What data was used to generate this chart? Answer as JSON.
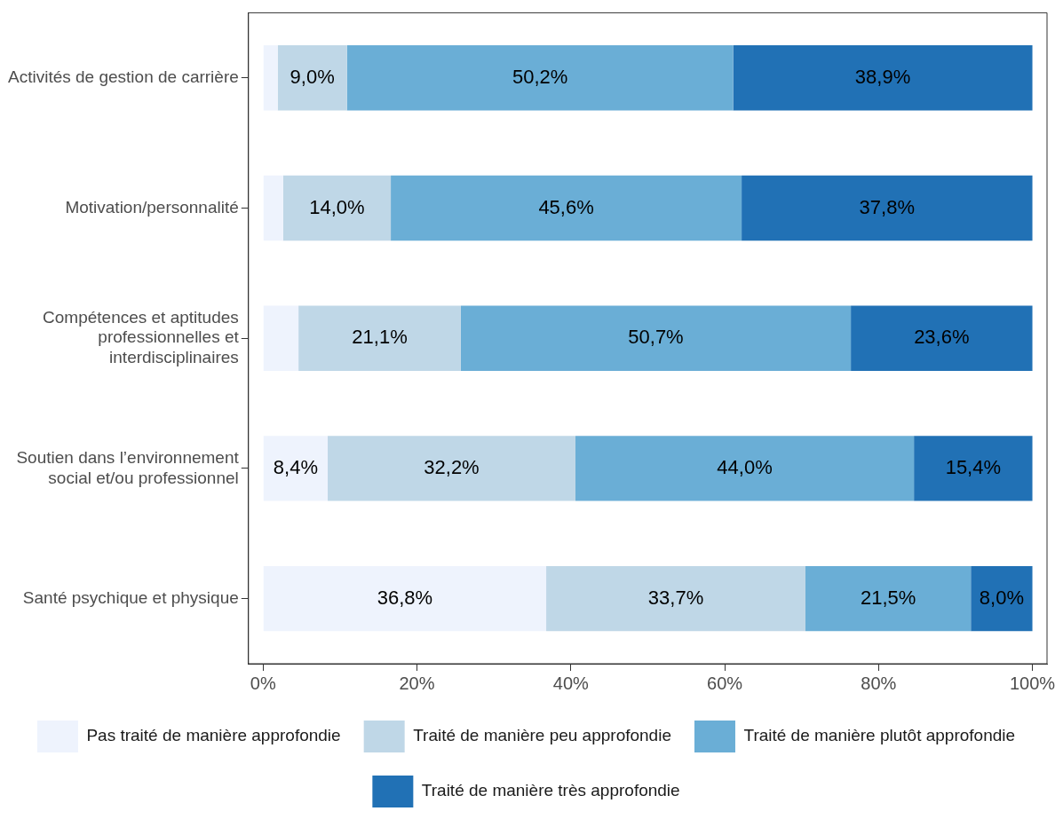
{
  "chart_data": {
    "type": "bar",
    "orientation": "horizontal",
    "stacked": true,
    "categories": [
      "Activités de gestion de carrière",
      "Motivation/personnalité",
      "Compétences et aptitudes professionnelles et interdisciplinaires",
      "Soutien dans l’environnement social et/ou professionnel",
      "Santé psychique et physique"
    ],
    "series": [
      {
        "name": "Pas traité de manière approfondie",
        "color": "#eef3fd",
        "values": [
          1.9,
          2.6,
          4.6,
          8.4,
          36.8
        ],
        "value_labels": [
          null,
          null,
          null,
          "8,4%",
          "36,8%"
        ]
      },
      {
        "name": "Traité de manière peu approfondie",
        "color": "#bfd7e7",
        "values": [
          9.0,
          14.0,
          21.1,
          32.2,
          33.7
        ],
        "value_labels": [
          "9,0%",
          "14,0%",
          "21,1%",
          "32,2%",
          "33,7%"
        ]
      },
      {
        "name": "Traité de manière plutôt approfondie",
        "color": "#6aaed6",
        "values": [
          50.2,
          45.6,
          50.7,
          44.0,
          21.5
        ],
        "value_labels": [
          "50,2%",
          "45,6%",
          "50,7%",
          "44,0%",
          "21,5%"
        ]
      },
      {
        "name": "Traité de manière très approfondie",
        "color": "#2171b5",
        "values": [
          38.9,
          37.8,
          23.6,
          15.4,
          8.0
        ],
        "value_labels": [
          "38,9%",
          "37,8%",
          "23,6%",
          "15,4%",
          "8,0%"
        ]
      }
    ],
    "xlim": [
      -1.9,
      101.9
    ],
    "xticks": [
      {
        "value": 0,
        "label": "0%"
      },
      {
        "value": 20,
        "label": "20%"
      },
      {
        "value": 40,
        "label": "40%"
      },
      {
        "value": 60,
        "label": "60%"
      },
      {
        "value": 80,
        "label": "80%"
      },
      {
        "value": 100,
        "label": "100%"
      }
    ],
    "grid": false,
    "legend": "bottom"
  }
}
